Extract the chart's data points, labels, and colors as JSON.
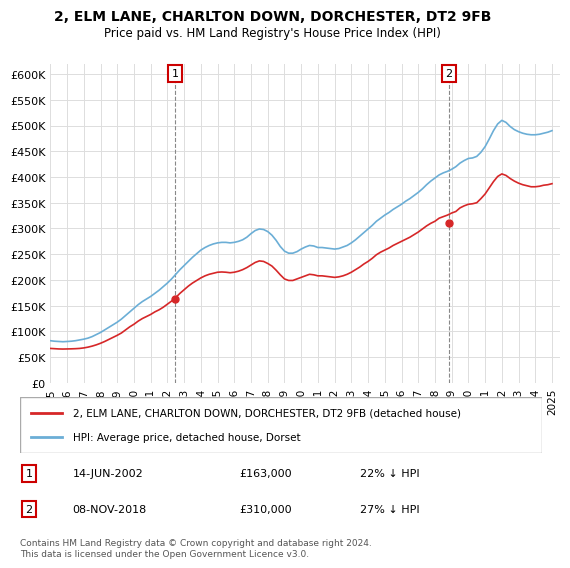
{
  "title": "2, ELM LANE, CHARLTON DOWN, DORCHESTER, DT2 9FB",
  "subtitle": "Price paid vs. HM Land Registry's House Price Index (HPI)",
  "legend_line1": "2, ELM LANE, CHARLTON DOWN, DORCHESTER, DT2 9FB (detached house)",
  "legend_line2": "HPI: Average price, detached house, Dorset",
  "footnote": "Contains HM Land Registry data © Crown copyright and database right 2024.\nThis data is licensed under the Open Government Licence v3.0.",
  "transaction1_label": "1",
  "transaction1_date": "14-JUN-2002",
  "transaction1_price": "£163,000",
  "transaction1_pct": "22% ↓ HPI",
  "transaction2_label": "2",
  "transaction2_date": "08-NOV-2018",
  "transaction2_price": "£310,000",
  "transaction2_pct": "27% ↓ HPI",
  "hpi_color": "#6baed6",
  "property_color": "#d62728",
  "marker_color": "#d62728",
  "background_color": "#ffffff",
  "ylim": [
    0,
    620000
  ],
  "yticks": [
    0,
    50000,
    100000,
    150000,
    200000,
    250000,
    300000,
    350000,
    400000,
    450000,
    500000,
    550000,
    600000
  ],
  "xlim_start": 1995.0,
  "xlim_end": 2025.5,
  "xticks": [
    1995,
    1996,
    1997,
    1998,
    1999,
    2000,
    2001,
    2002,
    2003,
    2004,
    2005,
    2006,
    2007,
    2008,
    2009,
    2010,
    2011,
    2012,
    2013,
    2014,
    2015,
    2016,
    2017,
    2018,
    2019,
    2020,
    2021,
    2022,
    2023,
    2024,
    2025
  ],
  "hpi_years": [
    1995.0,
    1995.25,
    1995.5,
    1995.75,
    1996.0,
    1996.25,
    1996.5,
    1996.75,
    1997.0,
    1997.25,
    1997.5,
    1997.75,
    1998.0,
    1998.25,
    1998.5,
    1998.75,
    1999.0,
    1999.25,
    1999.5,
    1999.75,
    2000.0,
    2000.25,
    2000.5,
    2000.75,
    2001.0,
    2001.25,
    2001.5,
    2001.75,
    2002.0,
    2002.25,
    2002.5,
    2002.75,
    2003.0,
    2003.25,
    2003.5,
    2003.75,
    2004.0,
    2004.25,
    2004.5,
    2004.75,
    2005.0,
    2005.25,
    2005.5,
    2005.75,
    2006.0,
    2006.25,
    2006.5,
    2006.75,
    2007.0,
    2007.25,
    2007.5,
    2007.75,
    2008.0,
    2008.25,
    2008.5,
    2008.75,
    2009.0,
    2009.25,
    2009.5,
    2009.75,
    2010.0,
    2010.25,
    2010.5,
    2010.75,
    2011.0,
    2011.25,
    2011.5,
    2011.75,
    2012.0,
    2012.25,
    2012.5,
    2012.75,
    2013.0,
    2013.25,
    2013.5,
    2013.75,
    2014.0,
    2014.25,
    2014.5,
    2014.75,
    2015.0,
    2015.25,
    2015.5,
    2015.75,
    2016.0,
    2016.25,
    2016.5,
    2016.75,
    2017.0,
    2017.25,
    2017.5,
    2017.75,
    2018.0,
    2018.25,
    2018.5,
    2018.75,
    2019.0,
    2019.25,
    2019.5,
    2019.75,
    2020.0,
    2020.25,
    2020.5,
    2020.75,
    2021.0,
    2021.25,
    2021.5,
    2021.75,
    2022.0,
    2022.25,
    2022.5,
    2022.75,
    2023.0,
    2023.25,
    2023.5,
    2023.75,
    2024.0,
    2024.25,
    2024.5,
    2024.75,
    2025.0
  ],
  "hpi_values": [
    82000,
    81000,
    80500,
    80000,
    80500,
    81000,
    82000,
    83500,
    85000,
    87000,
    90000,
    94000,
    98000,
    103000,
    108000,
    113000,
    118000,
    124000,
    131000,
    138000,
    145000,
    152000,
    158000,
    163000,
    168000,
    174000,
    180000,
    187000,
    194000,
    202000,
    211000,
    220000,
    228000,
    236000,
    244000,
    251000,
    258000,
    263000,
    267000,
    270000,
    272000,
    273000,
    273000,
    272000,
    273000,
    275000,
    278000,
    283000,
    290000,
    296000,
    299000,
    298000,
    294000,
    287000,
    277000,
    265000,
    256000,
    252000,
    252000,
    255000,
    260000,
    264000,
    267000,
    266000,
    263000,
    263000,
    262000,
    261000,
    260000,
    261000,
    264000,
    267000,
    272000,
    278000,
    285000,
    292000,
    299000,
    306000,
    314000,
    320000,
    326000,
    331000,
    337000,
    342000,
    347000,
    353000,
    358000,
    364000,
    370000,
    377000,
    385000,
    392000,
    398000,
    404000,
    408000,
    411000,
    415000,
    420000,
    427000,
    432000,
    436000,
    437000,
    440000,
    448000,
    459000,
    474000,
    490000,
    503000,
    510000,
    506000,
    498000,
    492000,
    488000,
    485000,
    483000,
    482000,
    482000,
    483000,
    485000,
    487000,
    490000
  ],
  "property_years": [
    1995.0,
    1995.25,
    1995.5,
    1995.75,
    1996.0,
    1996.25,
    1996.5,
    1996.75,
    1997.0,
    1997.25,
    1997.5,
    1997.75,
    1998.0,
    1998.25,
    1998.5,
    1998.75,
    1999.0,
    1999.25,
    1999.5,
    1999.75,
    2000.0,
    2000.25,
    2000.5,
    2000.75,
    2001.0,
    2001.25,
    2001.5,
    2001.75,
    2002.0,
    2002.25,
    2002.5,
    2002.75,
    2003.0,
    2003.25,
    2003.5,
    2003.75,
    2004.0,
    2004.25,
    2004.5,
    2004.75,
    2005.0,
    2005.25,
    2005.5,
    2005.75,
    2006.0,
    2006.25,
    2006.5,
    2006.75,
    2007.0,
    2007.25,
    2007.5,
    2007.75,
    2008.0,
    2008.25,
    2008.5,
    2008.75,
    2009.0,
    2009.25,
    2009.5,
    2009.75,
    2010.0,
    2010.25,
    2010.5,
    2010.75,
    2011.0,
    2011.25,
    2011.5,
    2011.75,
    2012.0,
    2012.25,
    2012.5,
    2012.75,
    2013.0,
    2013.25,
    2013.5,
    2013.75,
    2014.0,
    2014.25,
    2014.5,
    2014.75,
    2015.0,
    2015.25,
    2015.5,
    2015.75,
    2016.0,
    2016.25,
    2016.5,
    2016.75,
    2017.0,
    2017.25,
    2017.5,
    2017.75,
    2018.0,
    2018.25,
    2018.5,
    2018.75,
    2019.0,
    2019.25,
    2019.5,
    2019.75,
    2020.0,
    2020.25,
    2020.5,
    2020.75,
    2021.0,
    2021.25,
    2021.5,
    2021.75,
    2022.0,
    2022.25,
    2022.5,
    2022.75,
    2023.0,
    2023.25,
    2023.5,
    2023.75,
    2024.0,
    2024.25,
    2024.5,
    2024.75,
    2025.0
  ],
  "property_values": [
    67000,
    66500,
    66000,
    65800,
    66000,
    66200,
    66500,
    67000,
    68000,
    69500,
    71500,
    74000,
    77000,
    80500,
    84500,
    88500,
    92500,
    97000,
    103000,
    109000,
    114000,
    120000,
    125000,
    129000,
    133000,
    138000,
    142000,
    147000,
    153000,
    159000,
    166000,
    174000,
    181000,
    188000,
    194000,
    199000,
    204000,
    208000,
    211000,
    213000,
    215000,
    215500,
    215000,
    214000,
    215000,
    217000,
    220000,
    224000,
    229000,
    234000,
    237000,
    236000,
    232000,
    227000,
    219000,
    210000,
    202000,
    199000,
    199000,
    202000,
    205000,
    208000,
    211000,
    210000,
    208000,
    208000,
    207000,
    206000,
    205000,
    206000,
    208000,
    211000,
    215000,
    220000,
    225000,
    231000,
    236000,
    242000,
    249000,
    254000,
    258000,
    262000,
    267000,
    271000,
    275000,
    279000,
    283000,
    288000,
    293000,
    299000,
    305000,
    310000,
    314000,
    320000,
    323000,
    326000,
    330000,
    333000,
    340000,
    344000,
    347000,
    348000,
    350000,
    358000,
    367000,
    379000,
    391000,
    401000,
    406000,
    403000,
    397000,
    392000,
    388000,
    385000,
    383000,
    381000,
    381000,
    382000,
    384000,
    385000,
    387000
  ],
  "transaction1_x": 2002.45,
  "transaction1_y": 163000,
  "transaction2_x": 2018.84,
  "transaction2_y": 310000
}
